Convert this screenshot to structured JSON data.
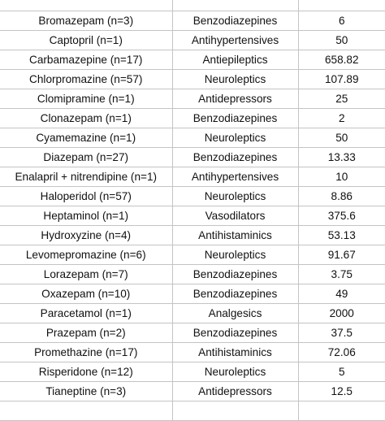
{
  "table": {
    "rows": [
      {
        "drug": "",
        "class": "",
        "dose": ""
      },
      {
        "drug": "Bromazepam (n=3)",
        "class": "Benzodiazepines",
        "dose": "6"
      },
      {
        "drug": "Captopril (n=1)",
        "class": "Antihypertensives",
        "dose": "50"
      },
      {
        "drug": "Carbamazepine (n=17)",
        "class": "Antiepileptics",
        "dose": "658.82"
      },
      {
        "drug": "Chlorpromazine (n=57)",
        "class": "Neuroleptics",
        "dose": "107.89"
      },
      {
        "drug": "Clomipramine (n=1)",
        "class": "Antidepressors",
        "dose": "25"
      },
      {
        "drug": "Clonazepam (n=1)",
        "class": "Benzodiazepines",
        "dose": "2"
      },
      {
        "drug": "Cyamemazine (n=1)",
        "class": "Neuroleptics",
        "dose": "50"
      },
      {
        "drug": "Diazepam (n=27)",
        "class": "Benzodiazepines",
        "dose": "13.33"
      },
      {
        "drug": "Enalapril + nitrendipine (n=1)",
        "class": "Antihypertensives",
        "dose": "10"
      },
      {
        "drug": "Haloperidol (n=57)",
        "class": "Neuroleptics",
        "dose": "8.86"
      },
      {
        "drug": "Heptaminol (n=1)",
        "class": "Vasodilators",
        "dose": "375.6"
      },
      {
        "drug": "Hydroxyzine (n=4)",
        "class": "Antihistaminics",
        "dose": "53.13"
      },
      {
        "drug": "Levomepromazine (n=6)",
        "class": "Neuroleptics",
        "dose": "91.67"
      },
      {
        "drug": "Lorazepam (n=7)",
        "class": "Benzodiazepines",
        "dose": "3.75"
      },
      {
        "drug": "Oxazepam (n=10)",
        "class": "Benzodiazepines",
        "dose": "49"
      },
      {
        "drug": "Paracetamol (n=1)",
        "class": "Analgesics",
        "dose": "2000"
      },
      {
        "drug": "Prazepam (n=2)",
        "class": "Benzodiazepines",
        "dose": "37.5"
      },
      {
        "drug": "Promethazine (n=17)",
        "class": "Antihistaminics",
        "dose": "72.06"
      },
      {
        "drug": "Risperidone (n=12)",
        "class": "Neuroleptics",
        "dose": "5"
      },
      {
        "drug": "Tianeptine (n=3)",
        "class": "Antidepressors",
        "dose": "12.5"
      },
      {
        "drug": "",
        "class": "",
        "dose": ""
      }
    ]
  }
}
